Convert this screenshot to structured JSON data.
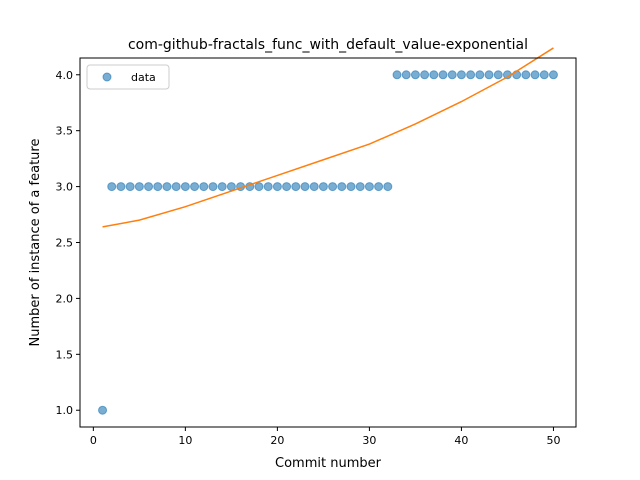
{
  "chart_data": {
    "type": "scatter",
    "title": "com-github-fractals_func_with_default_value-exponential",
    "xlabel": "Commit number",
    "ylabel": "Number of instance of a feature",
    "xlim": [
      -1.45,
      52.45
    ],
    "ylim": [
      0.85,
      4.15
    ],
    "xticks": [
      0,
      10,
      20,
      30,
      40,
      50
    ],
    "xtick_labels": [
      "0",
      "10",
      "20",
      "30",
      "40",
      "50"
    ],
    "yticks": [
      1.0,
      1.5,
      2.0,
      2.5,
      3.0,
      3.5,
      4.0
    ],
    "ytick_labels": [
      "1.0",
      "1.5",
      "2.0",
      "2.5",
      "3.0",
      "3.5",
      "4.0"
    ],
    "grid": false,
    "legend_position": "upper-left",
    "series": [
      {
        "name": "data",
        "kind": "scatter",
        "color": "#1f77b4",
        "x": [
          1,
          2,
          3,
          4,
          5,
          6,
          7,
          8,
          9,
          10,
          11,
          12,
          13,
          14,
          15,
          16,
          17,
          18,
          19,
          20,
          21,
          22,
          23,
          24,
          25,
          26,
          27,
          28,
          29,
          30,
          31,
          32,
          33,
          34,
          35,
          36,
          37,
          38,
          39,
          40,
          41,
          42,
          43,
          44,
          45,
          46,
          47,
          48,
          49,
          50
        ],
        "y": [
          1,
          3,
          3,
          3,
          3,
          3,
          3,
          3,
          3,
          3,
          3,
          3,
          3,
          3,
          3,
          3,
          3,
          3,
          3,
          3,
          3,
          3,
          3,
          3,
          3,
          3,
          3,
          3,
          3,
          3,
          3,
          3,
          4,
          4,
          4,
          4,
          4,
          4,
          4,
          4,
          4,
          4,
          4,
          4,
          4,
          4,
          4,
          4,
          4,
          4
        ]
      },
      {
        "kind": "line",
        "color": "#ff7f0e",
        "x": [
          1,
          5,
          10,
          15,
          20,
          25,
          30,
          35,
          40,
          45,
          50
        ],
        "y": [
          2.64,
          2.7,
          2.82,
          2.96,
          3.1,
          3.24,
          3.38,
          3.56,
          3.76,
          3.98,
          4.24
        ]
      }
    ]
  }
}
